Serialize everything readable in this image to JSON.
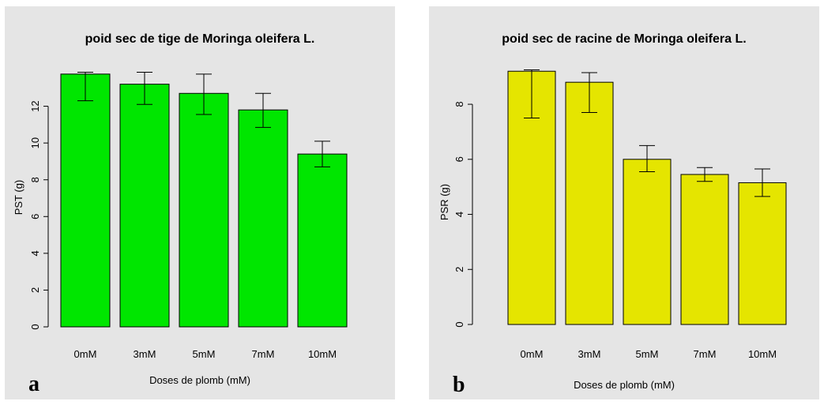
{
  "chart_data": [
    {
      "type": "bar",
      "panel_letter": "a",
      "title": "poid sec de tige de Moringa oleifera L.",
      "xlabel": "Doses de plomb (mM)",
      "ylabel": "PST (g)",
      "categories": [
        "0mM",
        "3mM",
        "5mM",
        "7mM",
        "10mM"
      ],
      "values": [
        13.75,
        13.2,
        12.7,
        11.8,
        9.4
      ],
      "error_low": [
        12.3,
        12.1,
        11.55,
        10.85,
        8.7
      ],
      "error_high": [
        13.85,
        13.85,
        13.75,
        12.7,
        10.1
      ],
      "ylim": [
        0,
        14
      ],
      "yticks": [
        0,
        2,
        4,
        6,
        8,
        10,
        12
      ],
      "bar_color": "#00e600",
      "background_color": "#e5e5e5",
      "grid": false
    },
    {
      "type": "bar",
      "panel_letter": "b",
      "title": "poid sec de racine de Moringa oleifera L.",
      "xlabel": "Doses de plomb (mM)",
      "ylabel": "PSR (g)",
      "categories": [
        "0mM",
        "3mM",
        "5mM",
        "7mM",
        "10mM"
      ],
      "values": [
        9.2,
        8.8,
        6.0,
        5.45,
        5.15
      ],
      "error_low": [
        7.5,
        7.7,
        5.55,
        5.2,
        4.65
      ],
      "error_high": [
        9.25,
        9.15,
        6.5,
        5.7,
        5.65
      ],
      "ylim": [
        0,
        9.35
      ],
      "yticks": [
        0,
        2,
        4,
        6,
        8
      ],
      "bar_color": "#e5e500",
      "background_color": "#e5e5e5",
      "grid": false
    }
  ]
}
